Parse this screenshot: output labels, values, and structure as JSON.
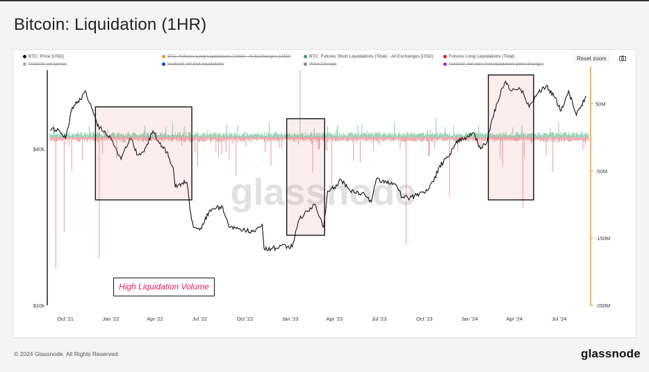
{
  "title": "Bitcoin: Liquidation (1HR)",
  "reset_zoom": "Reset zoom",
  "footer": {
    "copyright": "© 2024 Glassnode. All Rights Reserved.",
    "logo": "glassnode"
  },
  "watermark": "glassnode",
  "annotation": "High Liquidation Volume",
  "legend": [
    {
      "label": "BTC: Price [USD]",
      "color": "#111111",
      "struck": false
    },
    {
      "label": "BTC: Futures Long Liquidations (Total) - All Exchanges [USD]",
      "color": "#f7931a",
      "struck": true
    },
    {
      "label": "BTC: Futures Short Liquidations (Total) - All Exchanges [USD]",
      "color": "#26a269",
      "struck": false
    },
    {
      "label": "Futures Long Liquidations (Total)",
      "color": "#e01b24",
      "struck": false
    },
    {
      "label": "realized_vol (price)",
      "color": "#aaaaaa",
      "struck": true
    },
    {
      "label": "realized_vol (not liquidation)",
      "color": "#1c3be0",
      "struck": true
    },
    {
      "label": "Price Change",
      "color": "#888888",
      "struck": true
    },
    {
      "label": "realized_vol ratio (not liquidation/ price change)",
      "color": "#a020f0",
      "struck": true
    }
  ],
  "chart_data": {
    "type": "line",
    "title": "Bitcoin: Liquidation (1HR)",
    "x_tick_labels": [
      "Oct '21",
      "Jan '22",
      "Apr '22",
      "Jul '22",
      "Oct '22",
      "Jan '23",
      "Apr '23",
      "Jul '23",
      "Oct '23",
      "Jan '24",
      "Apr '24",
      "Jul '24"
    ],
    "y_left": {
      "scale": "log",
      "tick_labels": [
        "$40k",
        "$10k"
      ],
      "range": [
        10000,
        73000
      ]
    },
    "y_right": {
      "tick_labels": [
        "50M",
        "-50M",
        "-150M",
        "-250M"
      ],
      "range": [
        -250000000,
        100000000
      ]
    },
    "series": [
      {
        "name": "BTC: Price [USD]",
        "color": "#111111",
        "x": [
          "2021-09-01",
          "2021-09-15",
          "2021-10-01",
          "2021-10-15",
          "2021-11-01",
          "2021-11-10",
          "2021-11-25",
          "2021-12-05",
          "2021-12-20",
          "2022-01-05",
          "2022-01-22",
          "2022-02-10",
          "2022-02-25",
          "2022-03-10",
          "2022-03-28",
          "2022-04-10",
          "2022-04-25",
          "2022-05-08",
          "2022-05-12",
          "2022-05-25",
          "2022-06-05",
          "2022-06-13",
          "2022-06-18",
          "2022-07-01",
          "2022-07-20",
          "2022-08-01",
          "2022-08-15",
          "2022-08-30",
          "2022-09-15",
          "2022-10-01",
          "2022-10-20",
          "2022-11-05",
          "2022-11-09",
          "2022-11-25",
          "2022-12-15",
          "2023-01-05",
          "2023-01-20",
          "2023-02-05",
          "2023-02-20",
          "2023-03-10",
          "2023-03-18",
          "2023-04-01",
          "2023-04-14",
          "2023-05-01",
          "2023-05-15",
          "2023-06-01",
          "2023-06-15",
          "2023-06-25",
          "2023-07-15",
          "2023-08-01",
          "2023-08-17",
          "2023-09-01",
          "2023-09-15",
          "2023-10-01",
          "2023-10-20",
          "2023-11-01",
          "2023-11-20",
          "2023-12-05",
          "2023-12-20",
          "2024-01-10",
          "2024-01-23",
          "2024-02-05",
          "2024-02-15",
          "2024-02-28",
          "2024-03-05",
          "2024-03-14",
          "2024-03-25",
          "2024-04-10",
          "2024-04-20",
          "2024-05-01",
          "2024-05-20",
          "2024-06-05",
          "2024-06-20",
          "2024-07-05",
          "2024-07-20",
          "2024-08-05",
          "2024-08-15",
          "2024-08-25"
        ],
        "y": [
          47000,
          48000,
          44000,
          58000,
          62000,
          67000,
          57000,
          49000,
          47000,
          43000,
          36500,
          44000,
          38000,
          39000,
          47000,
          42000,
          39000,
          34000,
          28500,
          29500,
          29800,
          22500,
          20000,
          19500,
          23000,
          23500,
          24200,
          20000,
          20000,
          19500,
          19200,
          20500,
          16500,
          16500,
          17000,
          16800,
          21500,
          23000,
          24500,
          20000,
          27500,
          28500,
          30500,
          28000,
          27000,
          26800,
          25000,
          30500,
          30000,
          29500,
          26000,
          25800,
          26500,
          27000,
          30000,
          34500,
          37500,
          43000,
          43500,
          46000,
          40000,
          42500,
          52000,
          61000,
          68000,
          73000,
          67000,
          69000,
          65000,
          58000,
          66000,
          70000,
          64000,
          56000,
          67000,
          54000,
          59000,
          64000
        ]
      },
      {
        "name": "BTC: Futures Short Liquidations (Total) - All Exchanges [USD]",
        "color": "#26a269",
        "peak_usd": 100000000
      },
      {
        "name": "Futures Long Liquidations (Total)",
        "color": "#e01b24",
        "peak_usd": -195000000
      }
    ],
    "highlight_regions": [
      {
        "from": "2021-12-01",
        "to": "2022-06-15"
      },
      {
        "from": "2022-12-25",
        "to": "2023-03-12"
      },
      {
        "from": "2024-02-08",
        "to": "2024-05-10"
      }
    ],
    "annotations": [
      "High Liquidation Volume"
    ],
    "grid": false,
    "legend_position": "top"
  }
}
